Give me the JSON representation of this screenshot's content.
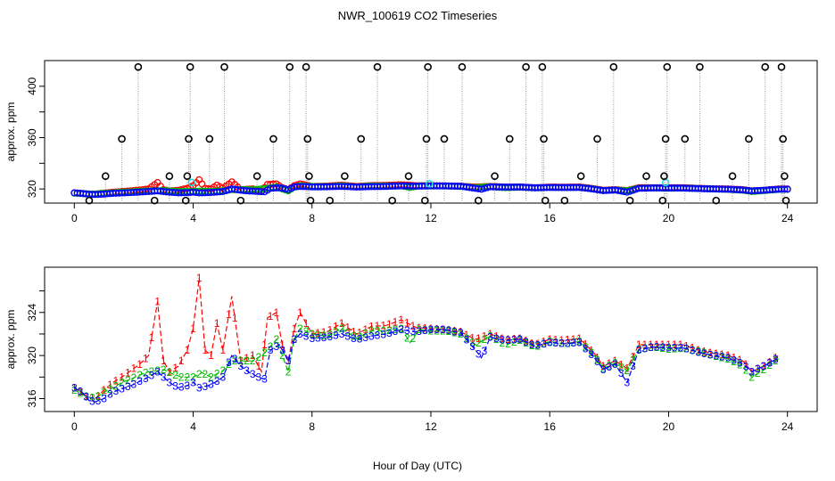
{
  "chart_data": [
    {
      "type": "scatter",
      "title": "NWR_100619  CO2 Timeseries",
      "ylabel": "approx. ppm",
      "xlabel": "",
      "xlim": [
        -1,
        25
      ],
      "ylim": [
        309,
        420
      ],
      "x_ticks": [
        0,
        4,
        8,
        12,
        16,
        20,
        24
      ],
      "y_ticks": [
        320,
        360,
        400
      ],
      "y_minor_ticks": [
        340,
        380
      ],
      "ceiling_value": 415,
      "flagged_spikes": [
        {
          "x": 0.5,
          "y": 311
        },
        {
          "x": 1.05,
          "y": 330
        },
        {
          "x": 1.6,
          "y": 359
        },
        {
          "x": 2.15,
          "y": 415
        },
        {
          "x": 2.7,
          "y": 311
        },
        {
          "x": 3.2,
          "y": 330
        },
        {
          "x": 3.75,
          "y": 311
        },
        {
          "x": 3.8,
          "y": 330
        },
        {
          "x": 3.85,
          "y": 359
        },
        {
          "x": 3.9,
          "y": 415
        },
        {
          "x": 4.55,
          "y": 359
        },
        {
          "x": 5.05,
          "y": 415
        },
        {
          "x": 5.6,
          "y": 311
        },
        {
          "x": 6.15,
          "y": 330
        },
        {
          "x": 6.7,
          "y": 359
        },
        {
          "x": 7.25,
          "y": 415
        },
        {
          "x": 7.8,
          "y": 415
        },
        {
          "x": 7.85,
          "y": 359
        },
        {
          "x": 7.9,
          "y": 330
        },
        {
          "x": 7.95,
          "y": 311
        },
        {
          "x": 8.6,
          "y": 311
        },
        {
          "x": 9.1,
          "y": 330
        },
        {
          "x": 9.65,
          "y": 359
        },
        {
          "x": 10.2,
          "y": 415
        },
        {
          "x": 10.7,
          "y": 311
        },
        {
          "x": 11.25,
          "y": 330
        },
        {
          "x": 11.8,
          "y": 311
        },
        {
          "x": 11.85,
          "y": 359
        },
        {
          "x": 11.9,
          "y": 415
        },
        {
          "x": 12.45,
          "y": 359
        },
        {
          "x": 13.05,
          "y": 415
        },
        {
          "x": 13.6,
          "y": 311
        },
        {
          "x": 14.15,
          "y": 330
        },
        {
          "x": 14.65,
          "y": 359
        },
        {
          "x": 15.2,
          "y": 415
        },
        {
          "x": 15.75,
          "y": 415
        },
        {
          "x": 15.8,
          "y": 359
        },
        {
          "x": 15.85,
          "y": 311
        },
        {
          "x": 16.5,
          "y": 311
        },
        {
          "x": 17.05,
          "y": 330
        },
        {
          "x": 17.6,
          "y": 359
        },
        {
          "x": 18.15,
          "y": 415
        },
        {
          "x": 18.7,
          "y": 311
        },
        {
          "x": 19.25,
          "y": 330
        },
        {
          "x": 19.8,
          "y": 311
        },
        {
          "x": 19.85,
          "y": 330
        },
        {
          "x": 19.9,
          "y": 359
        },
        {
          "x": 19.95,
          "y": 415
        },
        {
          "x": 20.55,
          "y": 359
        },
        {
          "x": 21.05,
          "y": 415
        },
        {
          "x": 21.6,
          "y": 311
        },
        {
          "x": 22.15,
          "y": 330
        },
        {
          "x": 22.7,
          "y": 359
        },
        {
          "x": 23.25,
          "y": 415
        },
        {
          "x": 23.8,
          "y": 415
        },
        {
          "x": 23.85,
          "y": 359
        },
        {
          "x": 23.9,
          "y": 330
        },
        {
          "x": 23.95,
          "y": 311
        }
      ],
      "cyan_points": [
        {
          "x": 3.95,
          "y": 325
        },
        {
          "x": 11.95,
          "y": 324
        },
        {
          "x": 19.9,
          "y": 325
        }
      ],
      "series_colors": {
        "flagged": "#000000",
        "line1": "#ff0000",
        "line2": "#00bb00",
        "line3": "#0000ff",
        "reference": "#22dddd",
        "dropline": "#999999"
      }
    },
    {
      "type": "line",
      "title": "",
      "ylabel": "approx. ppm",
      "xlabel": "Hour of Day (UTC)",
      "xlim": [
        -1,
        25
      ],
      "ylim": [
        314.8,
        328.2
      ],
      "x_ticks": [
        0,
        4,
        8,
        12,
        16,
        20,
        24
      ],
      "y_ticks": [
        316,
        320,
        324
      ],
      "y_minor_ticks": [
        318,
        322,
        326
      ],
      "series": [
        {
          "name": "1",
          "color": "#ff0000",
          "points": [
            [
              0,
              317.0
            ],
            [
              0.4,
              316.2
            ],
            [
              0.7,
              316.0
            ],
            [
              1.0,
              316.8
            ],
            [
              1.3,
              317.5
            ],
            [
              1.6,
              318.0
            ],
            [
              1.9,
              318.6
            ],
            [
              2.2,
              319.2
            ],
            [
              2.5,
              320.0
            ],
            [
              2.8,
              325.0
            ],
            [
              3.0,
              319.5
            ],
            [
              3.2,
              318.5
            ],
            [
              3.5,
              319.0
            ],
            [
              3.8,
              320.5
            ],
            [
              4.0,
              322.5
            ],
            [
              4.2,
              327.2
            ],
            [
              4.4,
              320.5
            ],
            [
              4.6,
              320.0
            ],
            [
              4.8,
              323.0
            ],
            [
              5.0,
              320.5
            ],
            [
              5.3,
              325.5
            ],
            [
              5.6,
              319.5
            ],
            [
              6.0,
              320.0
            ],
            [
              6.3,
              318.5
            ],
            [
              6.5,
              323.5
            ],
            [
              6.8,
              324.0
            ],
            [
              7.0,
              321.0
            ],
            [
              7.2,
              319.5
            ],
            [
              7.4,
              322.5
            ],
            [
              7.6,
              324.0
            ],
            [
              8.0,
              322.0
            ],
            [
              8.5,
              322.2
            ],
            [
              9.0,
              323.0
            ],
            [
              9.5,
              322.0
            ],
            [
              10.0,
              322.7
            ],
            [
              10.5,
              322.8
            ],
            [
              11.0,
              323.3
            ],
            [
              11.5,
              322.6
            ],
            [
              12.0,
              322.5
            ],
            [
              12.5,
              322.4
            ],
            [
              13.0,
              322.2
            ],
            [
              13.5,
              321.5
            ],
            [
              14.0,
              322.0
            ],
            [
              14.5,
              321.5
            ],
            [
              15.0,
              321.6
            ],
            [
              15.5,
              321.0
            ],
            [
              16.0,
              321.5
            ],
            [
              16.5,
              321.4
            ],
            [
              17.0,
              321.6
            ],
            [
              17.5,
              320.2
            ],
            [
              17.8,
              319.0
            ],
            [
              18.2,
              319.5
            ],
            [
              18.6,
              318.8
            ],
            [
              19.0,
              321.0
            ],
            [
              19.5,
              321.0
            ],
            [
              20.0,
              321.0
            ],
            [
              20.5,
              321.0
            ],
            [
              21.0,
              320.5
            ],
            [
              21.5,
              320.2
            ],
            [
              22.0,
              320.0
            ],
            [
              22.5,
              319.5
            ],
            [
              22.8,
              318.5
            ],
            [
              23.2,
              319.0
            ],
            [
              23.7,
              320.0
            ]
          ]
        },
        {
          "name": "2",
          "color": "#00bb00",
          "points": [
            [
              0,
              316.8
            ],
            [
              0.4,
              316.2
            ],
            [
              0.7,
              316.0
            ],
            [
              1.0,
              316.6
            ],
            [
              1.3,
              317.0
            ],
            [
              1.6,
              317.5
            ],
            [
              1.9,
              317.8
            ],
            [
              2.2,
              318.2
            ],
            [
              2.5,
              318.5
            ],
            [
              2.8,
              318.6
            ],
            [
              3.0,
              318.7
            ],
            [
              3.3,
              318.3
            ],
            [
              3.6,
              318.0
            ],
            [
              4.0,
              318.0
            ],
            [
              4.3,
              318.4
            ],
            [
              4.6,
              318.0
            ],
            [
              5.0,
              318.6
            ],
            [
              5.3,
              319.5
            ],
            [
              5.6,
              319.5
            ],
            [
              6.0,
              319.5
            ],
            [
              6.3,
              320.0
            ],
            [
              6.5,
              320.5
            ],
            [
              6.8,
              321.5
            ],
            [
              7.0,
              320.0
            ],
            [
              7.2,
              318.5
            ],
            [
              7.4,
              321.5
            ],
            [
              7.6,
              322.5
            ],
            [
              8.0,
              322.0
            ],
            [
              8.5,
              321.8
            ],
            [
              9.0,
              322.5
            ],
            [
              9.5,
              321.6
            ],
            [
              10.0,
              322.3
            ],
            [
              10.5,
              322.3
            ],
            [
              11.0,
              322.5
            ],
            [
              11.3,
              321.2
            ],
            [
              11.6,
              322.4
            ],
            [
              12.0,
              322.3
            ],
            [
              12.5,
              322.3
            ],
            [
              13.0,
              322.0
            ],
            [
              13.5,
              321.0
            ],
            [
              14.0,
              321.8
            ],
            [
              14.5,
              321.0
            ],
            [
              15.0,
              321.4
            ],
            [
              15.5,
              320.8
            ],
            [
              16.0,
              321.3
            ],
            [
              16.5,
              321.1
            ],
            [
              17.0,
              321.3
            ],
            [
              17.5,
              320.0
            ],
            [
              17.8,
              318.8
            ],
            [
              18.2,
              319.3
            ],
            [
              18.6,
              318.6
            ],
            [
              19.0,
              320.6
            ],
            [
              19.5,
              320.8
            ],
            [
              20.0,
              320.6
            ],
            [
              20.5,
              320.7
            ],
            [
              21.0,
              320.4
            ],
            [
              21.5,
              320.0
            ],
            [
              22.0,
              319.7
            ],
            [
              22.5,
              319.0
            ],
            [
              22.8,
              318.0
            ],
            [
              23.2,
              318.7
            ],
            [
              23.7,
              319.7
            ]
          ]
        },
        {
          "name": "3",
          "color": "#0000ff",
          "points": [
            [
              0,
              317.0
            ],
            [
              0.3,
              316.5
            ],
            [
              0.5,
              315.8
            ],
            [
              0.7,
              315.7
            ],
            [
              1.0,
              316.0
            ],
            [
              1.3,
              316.6
            ],
            [
              1.6,
              316.9
            ],
            [
              1.9,
              317.2
            ],
            [
              2.2,
              317.6
            ],
            [
              2.5,
              318.0
            ],
            [
              2.8,
              318.5
            ],
            [
              3.0,
              318.0
            ],
            [
              3.2,
              317.5
            ],
            [
              3.5,
              317.0
            ],
            [
              3.8,
              317.2
            ],
            [
              4.0,
              317.5
            ],
            [
              4.2,
              317.0
            ],
            [
              4.5,
              317.2
            ],
            [
              4.8,
              317.6
            ],
            [
              5.0,
              318.0
            ],
            [
              5.3,
              320.0
            ],
            [
              5.6,
              319.0
            ],
            [
              5.9,
              318.4
            ],
            [
              6.2,
              318.0
            ],
            [
              6.4,
              317.8
            ],
            [
              6.6,
              320.5
            ],
            [
              6.9,
              321.0
            ],
            [
              7.2,
              319.5
            ],
            [
              7.4,
              321.5
            ],
            [
              7.6,
              322.0
            ],
            [
              8.0,
              321.6
            ],
            [
              8.5,
              321.7
            ],
            [
              9.0,
              322.0
            ],
            [
              9.5,
              321.5
            ],
            [
              10.0,
              321.8
            ],
            [
              10.5,
              322.0
            ],
            [
              11.0,
              322.4
            ],
            [
              11.5,
              322.2
            ],
            [
              12.0,
              322.4
            ],
            [
              12.5,
              322.4
            ],
            [
              13.0,
              322.1
            ],
            [
              13.5,
              320.5
            ],
            [
              13.7,
              319.8
            ],
            [
              14.0,
              321.7
            ],
            [
              14.5,
              321.4
            ],
            [
              15.0,
              321.5
            ],
            [
              15.5,
              320.9
            ],
            [
              16.0,
              321.2
            ],
            [
              16.5,
              321.1
            ],
            [
              17.0,
              321.2
            ],
            [
              17.5,
              319.8
            ],
            [
              17.8,
              318.7
            ],
            [
              18.2,
              319.2
            ],
            [
              18.6,
              317.5
            ],
            [
              19.0,
              320.5
            ],
            [
              19.5,
              320.8
            ],
            [
              20.0,
              320.7
            ],
            [
              20.5,
              320.7
            ],
            [
              21.0,
              320.3
            ],
            [
              21.5,
              320.0
            ],
            [
              22.0,
              319.8
            ],
            [
              22.5,
              319.2
            ],
            [
              22.8,
              318.5
            ],
            [
              23.2,
              319.0
            ],
            [
              23.7,
              319.8
            ]
          ]
        }
      ]
    }
  ]
}
